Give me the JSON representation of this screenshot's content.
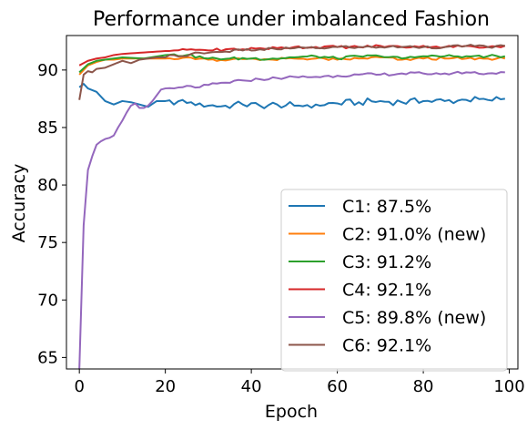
{
  "chart_data": {
    "type": "line",
    "title": "Performance under imbalanced Fashion",
    "xlabel": "Epoch",
    "ylabel": "Accuracy",
    "xlim": [
      -3,
      102
    ],
    "ylim": [
      64,
      93
    ],
    "xticks": [
      0,
      20,
      40,
      60,
      80,
      100
    ],
    "yticks": [
      65,
      70,
      75,
      80,
      85,
      90
    ],
    "legend_position": "lower-right",
    "series": [
      {
        "name": "C1: 87.5%",
        "color": "#1f77b4",
        "keypoints": [
          [
            0,
            88.5
          ],
          [
            1,
            88.8
          ],
          [
            2,
            88.4
          ],
          [
            4,
            88.1
          ],
          [
            6,
            87.3
          ],
          [
            8,
            87.0
          ],
          [
            10,
            87.3
          ],
          [
            12,
            87.2
          ],
          [
            14,
            87.0
          ],
          [
            16,
            86.8
          ],
          [
            18,
            87.3
          ],
          [
            20,
            87.3
          ],
          [
            22,
            87.0
          ],
          [
            24,
            87.4
          ],
          [
            26,
            87.2
          ],
          [
            28,
            87.1
          ],
          [
            30,
            86.9
          ],
          [
            34,
            86.9
          ],
          [
            38,
            87.0
          ],
          [
            42,
            86.9
          ],
          [
            46,
            87.0
          ],
          [
            50,
            86.9
          ],
          [
            55,
            87.0
          ],
          [
            60,
            87.1
          ],
          [
            65,
            87.2
          ],
          [
            70,
            87.3
          ],
          [
            75,
            87.2
          ],
          [
            80,
            87.3
          ],
          [
            85,
            87.3
          ],
          [
            90,
            87.4
          ],
          [
            95,
            87.4
          ],
          [
            99,
            87.5
          ]
        ],
        "amplitude": 0.3
      },
      {
        "name": "C2: 91.0% (new)",
        "color": "#ff7f0e",
        "keypoints": [
          [
            0,
            89.6
          ],
          [
            2,
            90.4
          ],
          [
            4,
            90.7
          ],
          [
            6,
            90.9
          ],
          [
            8,
            90.9
          ],
          [
            10,
            91.0
          ],
          [
            15,
            91.0
          ],
          [
            20,
            91.0
          ],
          [
            25,
            91.1
          ],
          [
            30,
            90.9
          ],
          [
            35,
            90.9
          ],
          [
            40,
            91.0
          ],
          [
            45,
            90.9
          ],
          [
            50,
            91.0
          ],
          [
            55,
            91.0
          ],
          [
            60,
            90.9
          ],
          [
            65,
            91.0
          ],
          [
            70,
            91.1
          ],
          [
            75,
            90.9
          ],
          [
            80,
            91.0
          ],
          [
            85,
            91.0
          ],
          [
            90,
            91.0
          ],
          [
            95,
            91.0
          ],
          [
            99,
            91.0
          ]
        ],
        "amplitude": 0.12
      },
      {
        "name": "C3: 91.2%",
        "color": "#2ca02c",
        "keypoints": [
          [
            0,
            89.8
          ],
          [
            2,
            90.5
          ],
          [
            4,
            90.8
          ],
          [
            6,
            90.9
          ],
          [
            8,
            91.0
          ],
          [
            10,
            91.1
          ],
          [
            15,
            91.0
          ],
          [
            20,
            91.3
          ],
          [
            25,
            91.3
          ],
          [
            30,
            91.0
          ],
          [
            35,
            91.0
          ],
          [
            40,
            91.0
          ],
          [
            45,
            91.0
          ],
          [
            50,
            91.1
          ],
          [
            55,
            91.2
          ],
          [
            60,
            91.0
          ],
          [
            65,
            91.2
          ],
          [
            70,
            91.2
          ],
          [
            75,
            91.0
          ],
          [
            80,
            91.2
          ],
          [
            85,
            91.2
          ],
          [
            90,
            91.2
          ],
          [
            95,
            91.2
          ],
          [
            99,
            91.2
          ]
        ],
        "amplitude": 0.12
      },
      {
        "name": "C4: 92.1%",
        "color": "#d62728",
        "keypoints": [
          [
            0,
            90.4
          ],
          [
            2,
            90.8
          ],
          [
            4,
            91.0
          ],
          [
            6,
            91.1
          ],
          [
            8,
            91.3
          ],
          [
            10,
            91.4
          ],
          [
            14,
            91.5
          ],
          [
            18,
            91.6
          ],
          [
            22,
            91.7
          ],
          [
            26,
            91.8
          ],
          [
            30,
            91.7
          ],
          [
            34,
            91.8
          ],
          [
            38,
            91.8
          ],
          [
            42,
            91.9
          ],
          [
            46,
            91.9
          ],
          [
            50,
            92.0
          ],
          [
            55,
            92.0
          ],
          [
            60,
            92.0
          ],
          [
            65,
            92.0
          ],
          [
            70,
            92.1
          ],
          [
            75,
            92.0
          ],
          [
            80,
            92.1
          ],
          [
            85,
            92.0
          ],
          [
            90,
            92.1
          ],
          [
            95,
            92.0
          ],
          [
            99,
            92.1
          ]
        ],
        "amplitude": 0.12
      },
      {
        "name": "C5: 89.8% (new)",
        "color": "#9467bd",
        "keypoints": [
          [
            0,
            64.0
          ],
          [
            1,
            76.5
          ],
          [
            2,
            81.3
          ],
          [
            3,
            82.5
          ],
          [
            4,
            83.5
          ],
          [
            5,
            83.8
          ],
          [
            6,
            84.0
          ],
          [
            7,
            84.1
          ],
          [
            8,
            84.3
          ],
          [
            9,
            85.0
          ],
          [
            10,
            85.6
          ],
          [
            11,
            86.3
          ],
          [
            12,
            86.9
          ],
          [
            13,
            87.1
          ],
          [
            14,
            86.7
          ],
          [
            15,
            86.7
          ],
          [
            16,
            86.9
          ],
          [
            17,
            87.3
          ],
          [
            18,
            87.8
          ],
          [
            19,
            88.3
          ],
          [
            20,
            88.4
          ],
          [
            22,
            88.4
          ],
          [
            24,
            88.5
          ],
          [
            26,
            88.6
          ],
          [
            28,
            88.5
          ],
          [
            30,
            88.7
          ],
          [
            34,
            88.9
          ],
          [
            38,
            89.1
          ],
          [
            42,
            89.2
          ],
          [
            46,
            89.3
          ],
          [
            50,
            89.4
          ],
          [
            55,
            89.4
          ],
          [
            60,
            89.5
          ],
          [
            65,
            89.6
          ],
          [
            70,
            89.6
          ],
          [
            75,
            89.7
          ],
          [
            80,
            89.7
          ],
          [
            85,
            89.7
          ],
          [
            90,
            89.8
          ],
          [
            95,
            89.7
          ],
          [
            99,
            89.8
          ]
        ],
        "amplitude": 0.12
      },
      {
        "name": "C6: 92.1%",
        "color": "#8c564b",
        "keypoints": [
          [
            0,
            87.4
          ],
          [
            1,
            89.6
          ],
          [
            2,
            89.9
          ],
          [
            3,
            89.8
          ],
          [
            4,
            90.1
          ],
          [
            6,
            90.2
          ],
          [
            8,
            90.5
          ],
          [
            10,
            90.8
          ],
          [
            12,
            90.6
          ],
          [
            14,
            90.9
          ],
          [
            16,
            91.0
          ],
          [
            18,
            91.1
          ],
          [
            20,
            91.1
          ],
          [
            22,
            91.3
          ],
          [
            24,
            91.2
          ],
          [
            26,
            91.4
          ],
          [
            28,
            91.5
          ],
          [
            30,
            91.5
          ],
          [
            34,
            91.6
          ],
          [
            38,
            91.7
          ],
          [
            42,
            91.8
          ],
          [
            46,
            91.8
          ],
          [
            50,
            91.9
          ],
          [
            55,
            91.9
          ],
          [
            60,
            92.0
          ],
          [
            65,
            92.0
          ],
          [
            70,
            92.0
          ],
          [
            75,
            92.0
          ],
          [
            80,
            92.0
          ],
          [
            85,
            92.0
          ],
          [
            90,
            92.1
          ],
          [
            95,
            92.0
          ],
          [
            99,
            92.1
          ]
        ],
        "amplitude": 0.12
      }
    ]
  }
}
